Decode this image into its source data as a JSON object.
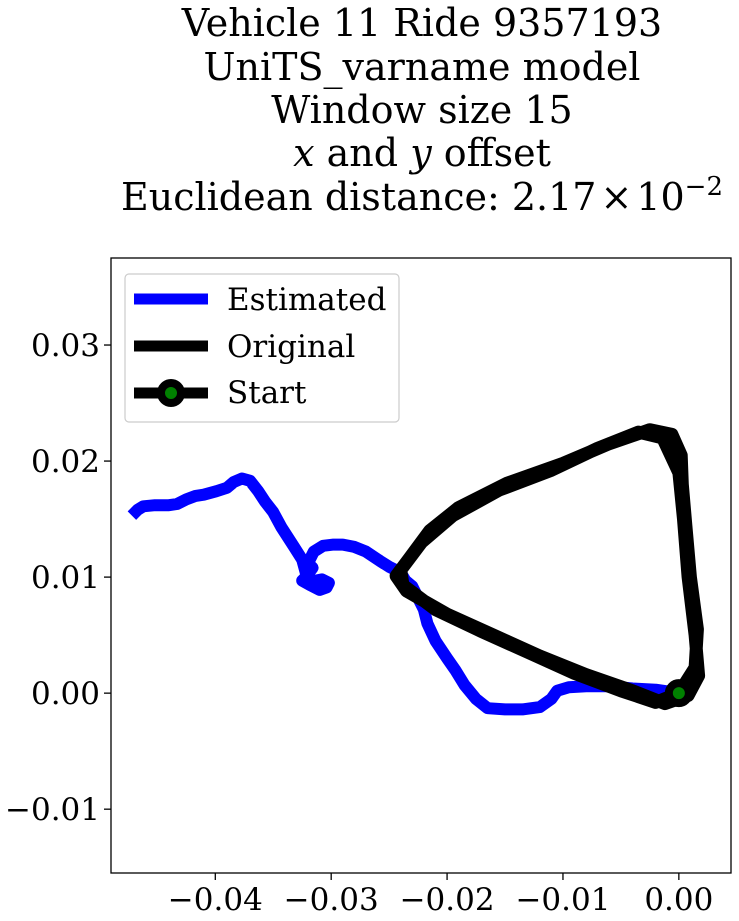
{
  "chart_data": {
    "type": "line",
    "title_lines": [
      "Vehicle 11 Ride 9357193",
      "UniTS_varname model",
      "Window size 15"
    ],
    "title_line4": {
      "var1": "x",
      "mid": " and ",
      "var2": "y",
      "end": " offset"
    },
    "title_line5": {
      "prefix": "Euclidean distance: 2.17",
      "times": "×",
      "base": "10",
      "exponent": "−2"
    },
    "xlabel": "",
    "ylabel": "",
    "xlim": [
      -0.049,
      0.0045
    ],
    "ylim": [
      -0.0155,
      0.0375
    ],
    "xticks": [
      -0.04,
      -0.03,
      -0.02,
      -0.01,
      0.0
    ],
    "xtick_labels": [
      "−0.04",
      "−0.03",
      "−0.02",
      "−0.01",
      "0.00"
    ],
    "yticks": [
      -0.01,
      0.0,
      0.01,
      0.02,
      0.03
    ],
    "ytick_labels": [
      "−0.01",
      "0.00",
      "0.01",
      "0.02",
      "0.03"
    ],
    "grid": false,
    "legend_position": "top-left",
    "series": [
      {
        "name": "Estimated",
        "color": "#0000ff",
        "points": [
          [
            0.0,
            0.0
          ],
          [
            -0.002,
            0.0003
          ],
          [
            -0.004,
            0.0004
          ],
          [
            -0.006,
            0.0006
          ],
          [
            -0.008,
            0.0006
          ],
          [
            -0.0095,
            0.0005
          ],
          [
            -0.0105,
            0.0002
          ],
          [
            -0.011,
            -0.0005
          ],
          [
            -0.012,
            -0.0012
          ],
          [
            -0.0135,
            -0.0014
          ],
          [
            -0.015,
            -0.0014
          ],
          [
            -0.0165,
            -0.0013
          ],
          [
            -0.0175,
            -0.0005
          ],
          [
            -0.0185,
            0.0007
          ],
          [
            -0.0193,
            0.002
          ],
          [
            -0.02,
            0.003
          ],
          [
            -0.021,
            0.0045
          ],
          [
            -0.0217,
            0.006
          ],
          [
            -0.022,
            0.0072
          ],
          [
            -0.0225,
            0.0082
          ],
          [
            -0.023,
            0.0092
          ],
          [
            -0.0236,
            0.0097
          ],
          [
            -0.024,
            0.0104
          ],
          [
            -0.025,
            0.0109
          ],
          [
            -0.0258,
            0.0114
          ],
          [
            -0.027,
            0.0122
          ],
          [
            -0.028,
            0.0126
          ],
          [
            -0.029,
            0.0128
          ],
          [
            -0.0298,
            0.0128
          ],
          [
            -0.0307,
            0.0127
          ],
          [
            -0.0315,
            0.0122
          ],
          [
            -0.032,
            0.0112
          ],
          [
            -0.0316,
            0.0108
          ],
          [
            -0.0322,
            0.01
          ],
          [
            -0.0325,
            0.0097
          ],
          [
            -0.0318,
            0.0093
          ],
          [
            -0.031,
            0.0089
          ],
          [
            -0.0304,
            0.0091
          ],
          [
            -0.0302,
            0.0095
          ],
          [
            -0.0308,
            0.0098
          ],
          [
            -0.0318,
            0.0096
          ],
          [
            -0.0322,
            0.0104
          ],
          [
            -0.0325,
            0.0115
          ],
          [
            -0.0332,
            0.0126
          ],
          [
            -0.0343,
            0.0143
          ],
          [
            -0.035,
            0.0156
          ],
          [
            -0.0357,
            0.0165
          ],
          [
            -0.0363,
            0.0174
          ],
          [
            -0.037,
            0.0183
          ],
          [
            -0.0377,
            0.0185
          ],
          [
            -0.0384,
            0.0182
          ],
          [
            -0.039,
            0.0177
          ],
          [
            -0.0399,
            0.0174
          ],
          [
            -0.041,
            0.0171
          ],
          [
            -0.0417,
            0.017
          ],
          [
            -0.0425,
            0.0167
          ],
          [
            -0.0433,
            0.0163
          ],
          [
            -0.044,
            0.0162
          ],
          [
            -0.0452,
            0.0162
          ],
          [
            -0.0462,
            0.0161
          ],
          [
            -0.0467,
            0.0158
          ],
          [
            -0.0472,
            0.0153
          ]
        ]
      },
      {
        "name": "Original",
        "color": "#000000",
        "points": [
          [
            0.0,
            0.0
          ],
          [
            0.0014,
            0.0022
          ],
          [
            0.0016,
            0.0055
          ],
          [
            0.001,
            0.01
          ],
          [
            0.0006,
            0.0145
          ],
          [
            0.0003,
            0.018
          ],
          [
            0.0002,
            0.0205
          ],
          [
            -0.0006,
            0.0223
          ],
          [
            -0.0025,
            0.0227
          ],
          [
            -0.006,
            0.0215
          ],
          [
            -0.01,
            0.0198
          ],
          [
            -0.0148,
            0.0181
          ],
          [
            -0.019,
            0.016
          ],
          [
            -0.0215,
            0.014
          ],
          [
            -0.0232,
            0.0117
          ],
          [
            -0.0244,
            0.0101
          ],
          [
            -0.0235,
            0.0088
          ],
          [
            -0.02,
            0.0068
          ],
          [
            -0.016,
            0.005
          ],
          [
            -0.012,
            0.0032
          ],
          [
            -0.008,
            0.0016
          ],
          [
            -0.004,
            0.0002
          ],
          [
            -0.0012,
            -0.0009
          ],
          [
            0.0008,
            -0.0002
          ],
          [
            0.0017,
            0.0015
          ],
          [
            0.0014,
            0.005
          ],
          [
            0.0008,
            0.01
          ],
          [
            0.0004,
            0.015
          ],
          [
            0.0,
            0.019
          ],
          [
            -0.0014,
            0.022
          ],
          [
            -0.0035,
            0.0225
          ],
          [
            -0.007,
            0.0211
          ],
          [
            -0.011,
            0.0192
          ],
          [
            -0.0155,
            0.0175
          ],
          [
            -0.0195,
            0.0153
          ],
          [
            -0.0222,
            0.013
          ],
          [
            -0.024,
            0.0106
          ],
          [
            -0.0238,
            0.0093
          ],
          [
            -0.021,
            0.0072
          ],
          [
            -0.017,
            0.0053
          ],
          [
            -0.013,
            0.0035
          ],
          [
            -0.009,
            0.0017
          ],
          [
            -0.005,
            0.0002
          ],
          [
            -0.002,
            -0.0008
          ],
          [
            0.0,
            0.0
          ]
        ]
      }
    ],
    "start_marker": {
      "name": "Start",
      "x": 0.0,
      "y": 0.0,
      "face_color": "#008000",
      "edge_color": "#000000"
    }
  }
}
